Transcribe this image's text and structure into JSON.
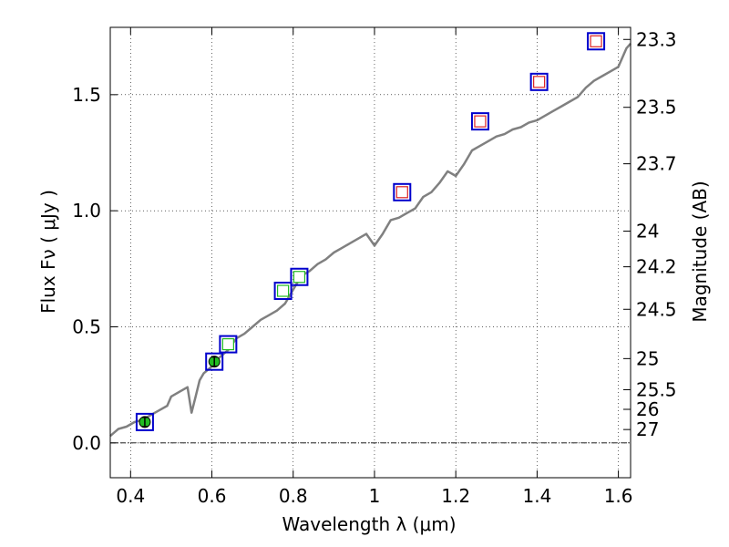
{
  "chart_data": {
    "type": "scatter",
    "xlabel": "Wavelength  λ (μm)",
    "ylabel": "Flux  Fν  ( μJy )",
    "ylabel_right": "Magnitude (AB)",
    "xlim": [
      0.35,
      1.63
    ],
    "ylim": [
      -0.15,
      1.79
    ],
    "x_ticks": [
      {
        "value": 0.4,
        "label": "0.4"
      },
      {
        "value": 0.6,
        "label": "0.6"
      },
      {
        "value": 0.8,
        "label": "0.8"
      },
      {
        "value": 1.0,
        "label": "1"
      },
      {
        "value": 1.2,
        "label": "1.2"
      },
      {
        "value": 1.4,
        "label": "1.4"
      },
      {
        "value": 1.6,
        "label": "1.6"
      }
    ],
    "y_ticks": [
      {
        "value": 0.0,
        "label": "0.0"
      },
      {
        "value": 0.5,
        "label": "0.5"
      },
      {
        "value": 1.0,
        "label": "1.0"
      },
      {
        "value": 1.5,
        "label": "1.5"
      }
    ],
    "mag_ticks": [
      {
        "value": 23.3,
        "label": "23.3"
      },
      {
        "value": 23.5,
        "label": "23.5"
      },
      {
        "value": 23.7,
        "label": "23.7"
      },
      {
        "value": 24.0,
        "label": "24"
      },
      {
        "value": 24.2,
        "label": "24.2"
      },
      {
        "value": 24.5,
        "label": "24.5"
      },
      {
        "value": 25.0,
        "label": "25"
      },
      {
        "value": 25.5,
        "label": "25.5"
      },
      {
        "value": 26.0,
        "label": "26"
      },
      {
        "value": 27.0,
        "label": "27"
      }
    ],
    "grid": true,
    "zero_line": true,
    "sed_model": {
      "name": "model spectrum",
      "color": "#808080",
      "x": [
        0.35,
        0.37,
        0.39,
        0.41,
        0.43,
        0.45,
        0.47,
        0.49,
        0.5,
        0.52,
        0.54,
        0.55,
        0.56,
        0.57,
        0.58,
        0.6,
        0.62,
        0.64,
        0.66,
        0.68,
        0.7,
        0.72,
        0.74,
        0.76,
        0.78,
        0.8,
        0.82,
        0.84,
        0.86,
        0.88,
        0.9,
        0.92,
        0.94,
        0.96,
        0.98,
        1.0,
        1.02,
        1.04,
        1.06,
        1.08,
        1.1,
        1.12,
        1.14,
        1.16,
        1.18,
        1.2,
        1.22,
        1.24,
        1.26,
        1.28,
        1.3,
        1.32,
        1.34,
        1.36,
        1.38,
        1.4,
        1.42,
        1.44,
        1.46,
        1.48,
        1.5,
        1.52,
        1.54,
        1.56,
        1.58,
        1.6,
        1.62,
        1.63
      ],
      "y": [
        0.03,
        0.06,
        0.07,
        0.09,
        0.1,
        0.12,
        0.14,
        0.16,
        0.2,
        0.22,
        0.24,
        0.13,
        0.2,
        0.27,
        0.3,
        0.33,
        0.37,
        0.4,
        0.45,
        0.47,
        0.5,
        0.53,
        0.55,
        0.57,
        0.6,
        0.66,
        0.72,
        0.74,
        0.77,
        0.79,
        0.82,
        0.84,
        0.86,
        0.88,
        0.9,
        0.85,
        0.9,
        0.96,
        0.97,
        0.99,
        1.01,
        1.06,
        1.08,
        1.12,
        1.17,
        1.15,
        1.2,
        1.26,
        1.28,
        1.3,
        1.32,
        1.33,
        1.35,
        1.36,
        1.38,
        1.39,
        1.41,
        1.43,
        1.45,
        1.47,
        1.49,
        1.53,
        1.56,
        1.58,
        1.6,
        1.62,
        1.7,
        1.72
      ]
    },
    "photometry": [
      {
        "x": 0.435,
        "y": 0.09,
        "err": 0.02,
        "model": 0.09,
        "fill": "#22bb22",
        "kind": "detection"
      },
      {
        "x": 0.606,
        "y": 0.35,
        "err": 0.02,
        "model": 0.35,
        "fill": "#22bb22",
        "kind": "detection"
      },
      {
        "x": 0.64,
        "y": 0.425,
        "err": 0.0,
        "model": 0.425,
        "fill": "#ffffff",
        "edge": "#22bb22",
        "kind": "model"
      },
      {
        "x": 0.775,
        "y": 0.655,
        "err": 0.0,
        "model": 0.655,
        "fill": "#ffffff",
        "edge": "#22bb22",
        "kind": "model"
      },
      {
        "x": 0.815,
        "y": 0.715,
        "err": 0.0,
        "model": 0.715,
        "fill": "#ffffff",
        "edge": "#22bb22",
        "kind": "model"
      },
      {
        "x": 1.068,
        "y": 1.08,
        "err": 0.0,
        "model": 1.08,
        "fill": "#ffffff",
        "edge": "#dd2222",
        "kind": "upper"
      },
      {
        "x": 1.26,
        "y": 1.385,
        "err": 0.0,
        "model": 1.385,
        "fill": "#ffffff",
        "edge": "#dd2222",
        "kind": "upper"
      },
      {
        "x": 1.405,
        "y": 1.555,
        "err": 0.0,
        "model": 1.555,
        "fill": "#ffffff",
        "edge": "#dd2222",
        "kind": "upper"
      },
      {
        "x": 1.545,
        "y": 1.73,
        "err": 0.0,
        "model": 1.73,
        "fill": "#ffffff",
        "edge": "#dd2222",
        "kind": "upper"
      }
    ],
    "box_color": "#0000cc"
  }
}
